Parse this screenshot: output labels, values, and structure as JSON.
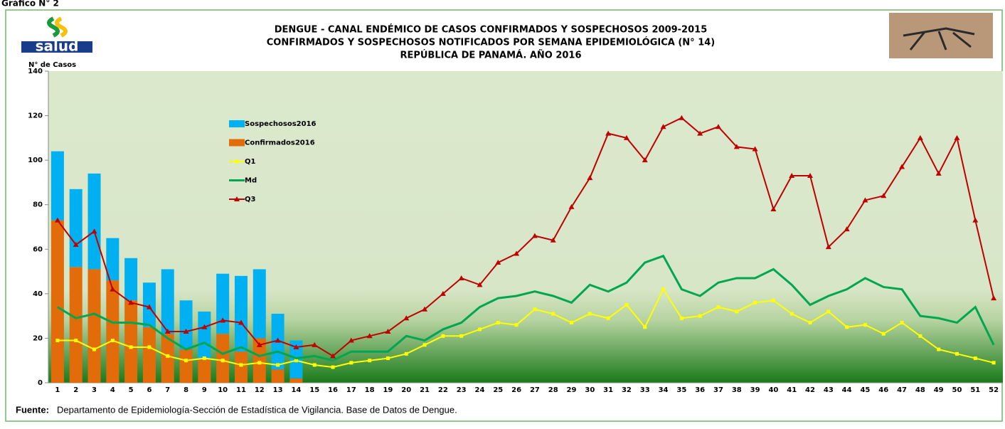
{
  "header": "Gráfico N° 2",
  "logo_text": "salud",
  "chart_data": {
    "type": "combo",
    "title": [
      "DENGUE - CANAL ENDÉMICO DE CASOS CONFIRMADOS Y SOSPECHOSOS 2009-2015",
      "CONFIRMADOS Y SOSPECHOSOS NOTIFICADOS POR SEMANA EPIDEMIOLÓGICA (N° 14)",
      "REPÚBLICA DE PANAMÁ. AÑO 2016"
    ],
    "y_label": "N° de Casos",
    "categories": [
      "1",
      "2",
      "3",
      "4",
      "5",
      "6",
      "7",
      "8",
      "9",
      "10",
      "11",
      "12",
      "13",
      "14",
      "15",
      "16",
      "17",
      "18",
      "19",
      "20",
      "21",
      "22",
      "23",
      "24",
      "25",
      "26",
      "27",
      "28",
      "29",
      "30",
      "31",
      "32",
      "33",
      "34",
      "35",
      "36",
      "37",
      "38",
      "39",
      "40",
      "41",
      "42",
      "43",
      "44",
      "45",
      "46",
      "47",
      "48",
      "49",
      "50",
      "51",
      "52"
    ],
    "ylim": [
      0,
      140
    ],
    "yticks": [
      0,
      20,
      40,
      60,
      80,
      100,
      120,
      140
    ],
    "series": [
      {
        "name": "Sospechosos2016",
        "type": "bar",
        "color": "#00b0f0",
        "values": [
          31,
          35,
          43,
          19,
          19,
          20,
          29,
          22,
          21,
          27,
          34,
          31,
          25,
          17,
          null,
          null,
          null,
          null,
          null,
          null,
          null,
          null,
          null,
          null,
          null,
          null,
          null,
          null,
          null,
          null,
          null,
          null,
          null,
          null,
          null,
          null,
          null,
          null,
          null,
          null,
          null,
          null,
          null,
          null,
          null,
          null,
          null,
          null,
          null,
          null,
          null,
          null
        ]
      },
      {
        "name": "Confirmados2016",
        "type": "bar",
        "color": "#e36c0a",
        "values": [
          73,
          52,
          51,
          46,
          37,
          25,
          22,
          15,
          11,
          22,
          14,
          20,
          6,
          2,
          null,
          null,
          null,
          null,
          null,
          null,
          null,
          null,
          null,
          null,
          null,
          null,
          null,
          null,
          null,
          null,
          null,
          null,
          null,
          null,
          null,
          null,
          null,
          null,
          null,
          null,
          null,
          null,
          null,
          null,
          null,
          null,
          null,
          null,
          null,
          null,
          null,
          null
        ]
      },
      {
        "name": "Q1",
        "type": "line",
        "color": "#ffff00",
        "marker": "square",
        "values": [
          19,
          19,
          15,
          19,
          16,
          16,
          12,
          10,
          11,
          10,
          8,
          9,
          8,
          10,
          8,
          7,
          9,
          10,
          11,
          13,
          17,
          21,
          21,
          24,
          27,
          26,
          33,
          31,
          27,
          31,
          29,
          35,
          25,
          42,
          29,
          30,
          34,
          32,
          36,
          37,
          31,
          27,
          32,
          25,
          26,
          22,
          27,
          21,
          15,
          13,
          11,
          9
        ]
      },
      {
        "name": "Md",
        "type": "line",
        "color": "#00a650",
        "marker": "none",
        "values": [
          34,
          29,
          31,
          27,
          27,
          26,
          20,
          15,
          18,
          13,
          16,
          12,
          14,
          11,
          12,
          10,
          14,
          14,
          14,
          21,
          19,
          24,
          27,
          34,
          38,
          39,
          41,
          39,
          36,
          44,
          41,
          45,
          54,
          57,
          42,
          39,
          45,
          47,
          47,
          51,
          44,
          35,
          39,
          42,
          47,
          43,
          42,
          30,
          29,
          27,
          34,
          17
        ]
      },
      {
        "name": "Q3",
        "type": "line",
        "color": "#c00000",
        "marker": "triangle",
        "values": [
          73,
          62,
          68,
          42,
          36,
          34,
          23,
          23,
          25,
          28,
          27,
          17,
          19,
          16,
          17,
          12,
          19,
          21,
          23,
          29,
          33,
          40,
          47,
          44,
          54,
          58,
          66,
          64,
          79,
          92,
          112,
          110,
          100,
          115,
          119,
          112,
          115,
          106,
          105,
          78,
          93,
          93,
          61,
          69,
          82,
          84,
          97,
          110,
          94,
          110,
          73,
          38
        ]
      }
    ]
  },
  "source": {
    "label": "Fuente:",
    "text": "Departamento de Epidemiología-Sección de Estadística de Vigilancia. Base de Datos de Dengue."
  }
}
